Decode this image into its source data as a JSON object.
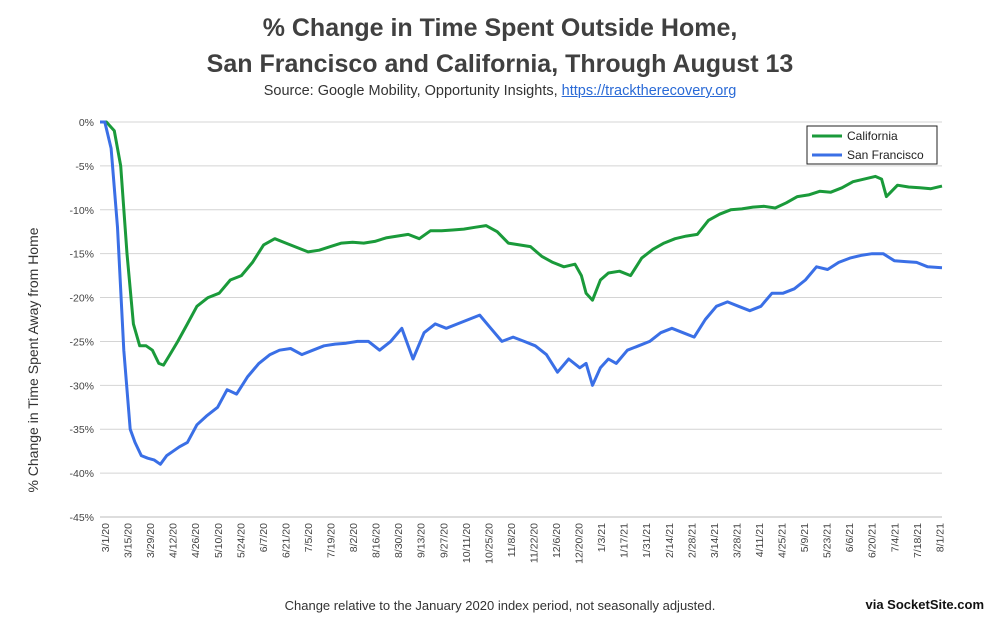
{
  "title_line1": "% Change in Time Spent Outside Home,",
  "title_line2": "San Francisco and California, Through August 13",
  "source_prefix": "Source: Google Mobility, Opportunity Insights, ",
  "source_link": "https://tracktherecovery.org",
  "ylabel": "% Change in Time Spent Away from Home",
  "footnote": "Change relative to the January 2020 index period, not seasonally adjusted.",
  "credit": "via SocketSite.com",
  "chart_data": {
    "type": "line",
    "title": "% Change in Time Spent Outside Home, San Francisco and California, Through August 13",
    "ylabel": "% Change in Time Spent Away from Home",
    "ylim": [
      -45,
      0
    ],
    "yticks": [
      "0%",
      "-5%",
      "-10%",
      "-15%",
      "-20%",
      "-25%",
      "-30%",
      "-35%",
      "-40%",
      "-45%"
    ],
    "x_tick_labels": [
      "3/1/20",
      "3/15/20",
      "3/29/20",
      "4/12/20",
      "4/26/20",
      "5/10/20",
      "5/24/20",
      "6/7/20",
      "6/21/20",
      "7/5/20",
      "7/19/20",
      "8/2/20",
      "8/16/20",
      "8/30/20",
      "9/13/20",
      "9/27/20",
      "10/11/20",
      "10/25/20",
      "11/8/20",
      "11/22/20",
      "12/6/20",
      "12/20/20",
      "1/3/21",
      "1/17/21",
      "1/31/21",
      "2/14/21",
      "2/28/21",
      "3/14/21",
      "3/28/21",
      "4/11/21",
      "4/25/21",
      "5/9/21",
      "5/23/21",
      "6/6/21",
      "6/20/21",
      "7/4/21",
      "7/18/21",
      "8/1/21"
    ],
    "x_start": "2020-03-01",
    "x_end": "2021-08-13",
    "grid": true,
    "legend_position": "top-right",
    "series": [
      {
        "name": "California",
        "color": "#1a9a3a",
        "x": [
          "2020-03-01",
          "2020-03-05",
          "2020-03-10",
          "2020-03-14",
          "2020-03-18",
          "2020-03-22",
          "2020-03-26",
          "2020-03-30",
          "2020-04-03",
          "2020-04-07",
          "2020-04-10",
          "2020-04-14",
          "2020-04-19",
          "2020-04-25",
          "2020-05-01",
          "2020-05-08",
          "2020-05-15",
          "2020-05-22",
          "2020-05-29",
          "2020-06-05",
          "2020-06-12",
          "2020-06-19",
          "2020-06-26",
          "2020-07-03",
          "2020-07-10",
          "2020-07-17",
          "2020-07-24",
          "2020-07-31",
          "2020-08-07",
          "2020-08-14",
          "2020-08-21",
          "2020-08-28",
          "2020-09-04",
          "2020-09-11",
          "2020-09-18",
          "2020-09-25",
          "2020-10-02",
          "2020-10-09",
          "2020-10-16",
          "2020-10-23",
          "2020-10-30",
          "2020-11-06",
          "2020-11-13",
          "2020-11-20",
          "2020-11-27",
          "2020-12-04",
          "2020-12-11",
          "2020-12-18",
          "2020-12-25",
          "2020-12-29",
          "2021-01-01",
          "2021-01-05",
          "2021-01-10",
          "2021-01-15",
          "2021-01-22",
          "2021-01-29",
          "2021-02-05",
          "2021-02-12",
          "2021-02-19",
          "2021-02-26",
          "2021-03-05",
          "2021-03-12",
          "2021-03-19",
          "2021-03-26",
          "2021-04-02",
          "2021-04-09",
          "2021-04-16",
          "2021-04-23",
          "2021-04-30",
          "2021-05-07",
          "2021-05-14",
          "2021-05-21",
          "2021-05-28",
          "2021-06-04",
          "2021-06-11",
          "2021-06-18",
          "2021-06-25",
          "2021-07-02",
          "2021-07-06",
          "2021-07-09",
          "2021-07-16",
          "2021-07-23",
          "2021-07-30",
          "2021-08-06",
          "2021-08-13"
        ],
        "y": [
          0,
          0,
          -1,
          -5,
          -15,
          -23,
          -25.5,
          -25.5,
          -26,
          -27.5,
          -27.7,
          -26.5,
          -25,
          -23,
          -21,
          -20,
          -19.5,
          -18,
          -17.5,
          -16,
          -14,
          -13.3,
          -13.8,
          -14.3,
          -14.8,
          -14.6,
          -14.2,
          -13.8,
          -13.7,
          -13.8,
          -13.6,
          -13.2,
          -13,
          -12.8,
          -13.3,
          -12.4,
          -12.4,
          -12.3,
          -12.2,
          -12,
          -11.8,
          -12.5,
          -13.8,
          -14,
          -14.2,
          -15.3,
          -16,
          -16.5,
          -16.2,
          -17.5,
          -19.5,
          -20.3,
          -18,
          -17.2,
          -17,
          -17.5,
          -15.5,
          -14.5,
          -13.8,
          -13.3,
          -13,
          -12.8,
          -11.2,
          -10.5,
          -10,
          -9.9,
          -9.7,
          -9.6,
          -9.8,
          -9.2,
          -8.5,
          -8.3,
          -7.9,
          -8,
          -7.5,
          -6.8,
          -6.5,
          -6.2,
          -6.5,
          -8.5,
          -7.2,
          -7.4,
          -7.5,
          -7.6,
          -7.3
        ]
      },
      {
        "name": "San Francisco",
        "color": "#3a6fe6",
        "x": [
          "2020-03-01",
          "2020-03-04",
          "2020-03-08",
          "2020-03-12",
          "2020-03-16",
          "2020-03-20",
          "2020-03-23",
          "2020-03-27",
          "2020-03-31",
          "2020-04-04",
          "2020-04-08",
          "2020-04-12",
          "2020-04-16",
          "2020-04-20",
          "2020-04-25",
          "2020-05-01",
          "2020-05-07",
          "2020-05-14",
          "2020-05-20",
          "2020-05-26",
          "2020-06-02",
          "2020-06-09",
          "2020-06-16",
          "2020-06-22",
          "2020-06-29",
          "2020-07-06",
          "2020-07-13",
          "2020-07-20",
          "2020-07-27",
          "2020-08-03",
          "2020-08-10",
          "2020-08-17",
          "2020-08-24",
          "2020-08-31",
          "2020-09-07",
          "2020-09-14",
          "2020-09-21",
          "2020-09-28",
          "2020-10-05",
          "2020-10-12",
          "2020-10-19",
          "2020-10-26",
          "2020-11-02",
          "2020-11-09",
          "2020-11-16",
          "2020-11-23",
          "2020-11-30",
          "2020-12-07",
          "2020-12-14",
          "2020-12-21",
          "2020-12-28",
          "2021-01-01",
          "2021-01-05",
          "2021-01-10",
          "2021-01-15",
          "2021-01-20",
          "2021-01-27",
          "2021-02-03",
          "2021-02-10",
          "2021-02-17",
          "2021-02-24",
          "2021-03-03",
          "2021-03-10",
          "2021-03-17",
          "2021-03-24",
          "2021-03-31",
          "2021-04-07",
          "2021-04-14",
          "2021-04-21",
          "2021-04-28",
          "2021-05-05",
          "2021-05-12",
          "2021-05-19",
          "2021-05-26",
          "2021-06-02",
          "2021-06-09",
          "2021-06-16",
          "2021-06-23",
          "2021-06-30",
          "2021-07-07",
          "2021-07-14",
          "2021-07-21",
          "2021-07-28",
          "2021-08-04",
          "2021-08-13"
        ],
        "y": [
          0,
          0,
          -3,
          -12,
          -26,
          -35,
          -36.5,
          -38,
          -38.3,
          -38.5,
          -39,
          -38,
          -37.5,
          -37,
          -36.5,
          -34.5,
          -33.5,
          -32.5,
          -30.5,
          -31,
          -29,
          -27.5,
          -26.5,
          -26,
          -25.8,
          -26.5,
          -26,
          -25.5,
          -25.3,
          -25.2,
          -25,
          -25,
          -26,
          -25,
          -23.5,
          -27,
          -24,
          -23,
          -23.5,
          -23,
          -22.5,
          -22,
          -23.5,
          -25,
          -24.5,
          -25,
          -25.5,
          -26.5,
          -28.5,
          -27,
          -28,
          -27.5,
          -30,
          -28,
          -27,
          -27.5,
          -26,
          -25.5,
          -25,
          -24,
          -23.5,
          -24,
          -24.5,
          -22.5,
          -21,
          -20.5,
          -21,
          -21.5,
          -21,
          -19.5,
          -19.5,
          -19,
          -18,
          -16.5,
          -16.8,
          -16,
          -15.5,
          -15.2,
          -15,
          -15,
          -15.8,
          -15.9,
          -16,
          -16.5,
          -16.6
        ]
      }
    ]
  }
}
